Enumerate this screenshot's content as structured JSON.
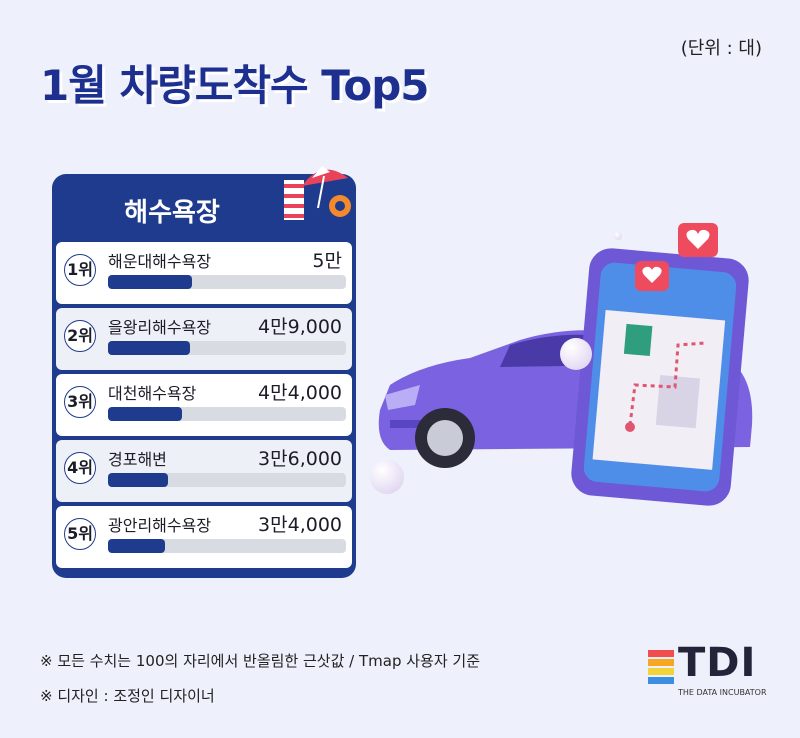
{
  "title": "1월 차량도착수  Top5",
  "unit": "(단위 : 대)",
  "card_title": "해수욕장",
  "chart_data": {
    "type": "bar",
    "orientation": "horizontal",
    "title": "1월 차량도착수  Top5",
    "unit": "(단위 : 대)",
    "categories": [
      "해운대해수욕장",
      "을왕리해수욕장",
      "대천해수욕장",
      "경포해변",
      "광안리해수욕장"
    ],
    "ranks": [
      "1위",
      "2위",
      "3위",
      "4위",
      "5위"
    ],
    "values": [
      50000,
      49000,
      44000,
      36000,
      34000
    ],
    "value_labels": [
      "5만",
      "4만9,000",
      "4만4,000",
      "3만6,000",
      "3만4,000"
    ],
    "bar_color": "#1e3b8e",
    "track_color": "#d9dbe3"
  },
  "notes": [
    "※ 모든 수치는 100의 자리에서 반올림한 근삿값 / Tmap 사용자 기준",
    "※ 디자인 : 조정인 디자이너"
  ],
  "logo": {
    "text": "TDI",
    "subtitle": "THE DATA INCUBATOR"
  }
}
